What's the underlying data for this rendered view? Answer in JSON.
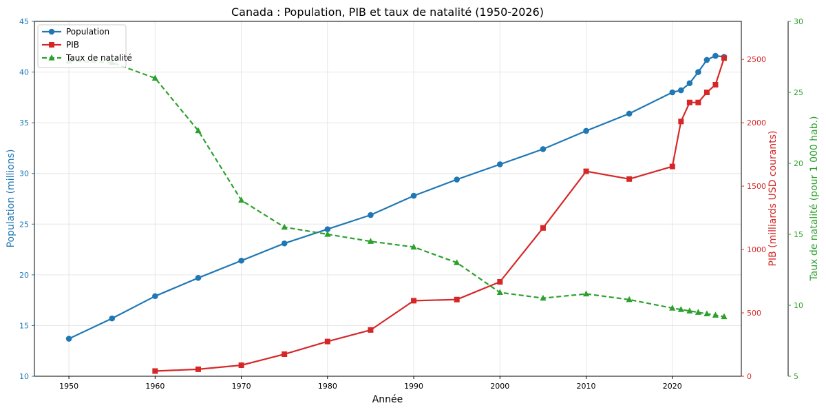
{
  "chart_data": {
    "type": "line",
    "title": "Canada : Population, PIB et taux de natalité (1950-2026)",
    "xlabel": "Année",
    "xlim": [
      1946,
      2028
    ],
    "x_ticks": [
      "1950",
      "1960",
      "1970",
      "1980",
      "1990",
      "2000",
      "2010",
      "2020"
    ],
    "grid": true,
    "legend_position": "top-left",
    "axes": {
      "left": {
        "label": "Population (millions)",
        "range": [
          10,
          45
        ],
        "ticks": [
          "10",
          "15",
          "20",
          "25",
          "30",
          "35",
          "40",
          "45"
        ],
        "color": "#1f77b4"
      },
      "right1": {
        "label": "PIB (milliards USD courants)",
        "range": [
          0,
          2800
        ],
        "ticks": [
          "0",
          "500",
          "1000",
          "1500",
          "2000",
          "2500"
        ],
        "color": "#d62728"
      },
      "right2": {
        "label": "Taux de natalité (pour 1 000 hab.)",
        "range": [
          5,
          30
        ],
        "ticks": [
          "5",
          "10",
          "15",
          "20",
          "25",
          "30"
        ],
        "color": "#2ca02c"
      }
    },
    "series": [
      {
        "name": "Population",
        "axis": "left",
        "color": "#1f77b4",
        "marker": "circle",
        "dash": "solid",
        "points": [
          [
            1950,
            13.7
          ],
          [
            1955,
            15.7
          ],
          [
            1960,
            17.9
          ],
          [
            1965,
            19.7
          ],
          [
            1970,
            21.4
          ],
          [
            1975,
            23.1
          ],
          [
            1980,
            24.5
          ],
          [
            1985,
            25.9
          ],
          [
            1990,
            27.8
          ],
          [
            1995,
            29.4
          ],
          [
            2000,
            30.9
          ],
          [
            2005,
            32.4
          ],
          [
            2010,
            34.2
          ],
          [
            2015,
            35.9
          ],
          [
            2020,
            38.0
          ],
          [
            2021,
            38.2
          ],
          [
            2022,
            38.9
          ],
          [
            2023,
            40.0
          ],
          [
            2024,
            41.2
          ],
          [
            2025,
            41.6
          ],
          [
            2026,
            41.5
          ]
        ]
      },
      {
        "name": "PIB",
        "axis": "right1",
        "color": "#d62728",
        "marker": "square",
        "dash": "solid",
        "points": [
          [
            1960,
            41
          ],
          [
            1965,
            55
          ],
          [
            1970,
            87
          ],
          [
            1975,
            174
          ],
          [
            1980,
            274
          ],
          [
            1985,
            365
          ],
          [
            1990,
            596
          ],
          [
            1995,
            605
          ],
          [
            2000,
            745
          ],
          [
            2005,
            1170
          ],
          [
            2010,
            1617
          ],
          [
            2015,
            1556
          ],
          [
            2020,
            1655
          ],
          [
            2021,
            2010
          ],
          [
            2022,
            2160
          ],
          [
            2023,
            2160
          ],
          [
            2024,
            2240
          ],
          [
            2025,
            2300
          ],
          [
            2026,
            2510
          ]
        ]
      },
      {
        "name": "Taux de natalité",
        "axis": "right2",
        "color": "#2ca02c",
        "marker": "triangle",
        "dash": "dashed",
        "points": [
          [
            1950,
            27.2
          ],
          [
            1955,
            27.1
          ],
          [
            1960,
            26.0
          ],
          [
            1965,
            22.3
          ],
          [
            1970,
            17.4
          ],
          [
            1975,
            15.5
          ],
          [
            1980,
            15.0
          ],
          [
            1985,
            14.5
          ],
          [
            1990,
            14.1
          ],
          [
            1995,
            13.0
          ],
          [
            2000,
            10.9
          ],
          [
            2005,
            10.5
          ],
          [
            2010,
            10.8
          ],
          [
            2015,
            10.4
          ],
          [
            2020,
            9.8
          ],
          [
            2021,
            9.7
          ],
          [
            2022,
            9.6
          ],
          [
            2023,
            9.5
          ],
          [
            2024,
            9.4
          ],
          [
            2025,
            9.3
          ],
          [
            2026,
            9.2
          ]
        ]
      }
    ]
  }
}
